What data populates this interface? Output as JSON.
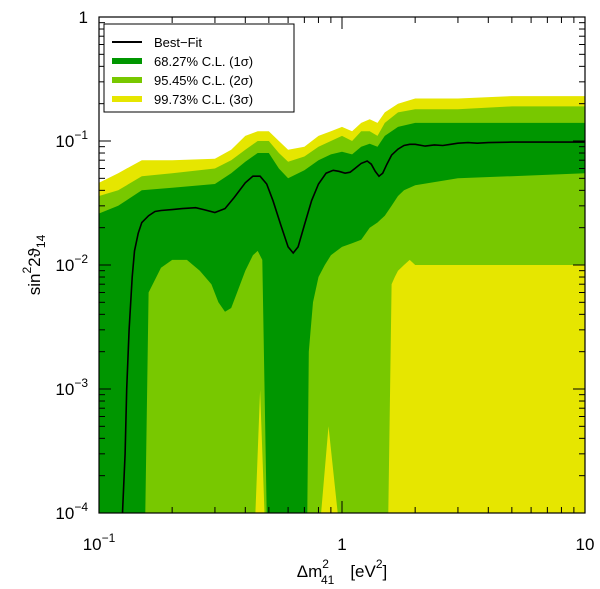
{
  "chart_data": {
    "type": "area",
    "title": "",
    "x_scale": "log",
    "y_scale": "log",
    "xlim": [
      0.1,
      10
    ],
    "ylim": [
      0.0001,
      1
    ],
    "xlabel": {
      "main": "Δm",
      "sup": "2",
      "sub": "41",
      "unit": "[eV",
      "unit_sup": "2",
      "unit_close": "]"
    },
    "ylabel": {
      "pre": "sin",
      "sup": "2",
      "mid": "2ϑ",
      "sub": "14"
    },
    "x_ticks": [
      {
        "value": 0.1,
        "label": "10",
        "sup": "−1"
      },
      {
        "value": 1,
        "label": "1",
        "sup": ""
      },
      {
        "value": 10,
        "label": "10",
        "sup": ""
      }
    ],
    "y_ticks": [
      {
        "value": 0.0001,
        "label": "10",
        "sup": "−4"
      },
      {
        "value": 0.001,
        "label": "10",
        "sup": "−3"
      },
      {
        "value": 0.01,
        "label": "10",
        "sup": "−2"
      },
      {
        "value": 0.1,
        "label": "10",
        "sup": "−1"
      },
      {
        "value": 1,
        "label": "1",
        "sup": ""
      }
    ],
    "legend": {
      "position": "top-left",
      "entries": [
        {
          "label": "Best−Fit",
          "color": "#000000",
          "kind": "line"
        },
        {
          "label": "68.27% C.L. (1σ)",
          "color": "#009600",
          "kind": "fill"
        },
        {
          "label": "95.45% C.L. (2σ)",
          "color": "#78c800",
          "kind": "fill"
        },
        {
          "label": "99.73% C.L. (3σ)",
          "color": "#e6e600",
          "kind": "fill"
        }
      ]
    },
    "series": [
      {
        "name": "99.73% C.L. (3σ)",
        "color": "#e6e600",
        "upper": [
          [
            0.1,
            0.046
          ],
          [
            0.12,
            0.055
          ],
          [
            0.15,
            0.07
          ],
          [
            0.2,
            0.07
          ],
          [
            0.3,
            0.072
          ],
          [
            0.35,
            0.085
          ],
          [
            0.4,
            0.11
          ],
          [
            0.45,
            0.12
          ],
          [
            0.5,
            0.12
          ],
          [
            0.55,
            0.1
          ],
          [
            0.6,
            0.085
          ],
          [
            0.7,
            0.09
          ],
          [
            0.8,
            0.11
          ],
          [
            0.9,
            0.12
          ],
          [
            1.0,
            0.13
          ],
          [
            1.1,
            0.12
          ],
          [
            1.2,
            0.14
          ],
          [
            1.3,
            0.15
          ],
          [
            1.4,
            0.14
          ],
          [
            1.5,
            0.17
          ],
          [
            1.7,
            0.2
          ],
          [
            2,
            0.22
          ],
          [
            3,
            0.22
          ],
          [
            5,
            0.23
          ],
          [
            10,
            0.23
          ]
        ],
        "lower": [
          [
            0.1,
            0.0001
          ],
          [
            10,
            0.0001
          ]
        ]
      },
      {
        "name": "95.45% C.L. (2σ)",
        "color": "#78c800",
        "upper": [
          [
            0.1,
            0.036
          ],
          [
            0.12,
            0.04
          ],
          [
            0.15,
            0.052
          ],
          [
            0.2,
            0.055
          ],
          [
            0.3,
            0.06
          ],
          [
            0.35,
            0.07
          ],
          [
            0.4,
            0.085
          ],
          [
            0.45,
            0.1
          ],
          [
            0.5,
            0.1
          ],
          [
            0.55,
            0.08
          ],
          [
            0.6,
            0.068
          ],
          [
            0.7,
            0.075
          ],
          [
            0.8,
            0.09
          ],
          [
            0.9,
            0.1
          ],
          [
            1.0,
            0.11
          ],
          [
            1.1,
            0.1
          ],
          [
            1.2,
            0.12
          ],
          [
            1.3,
            0.12
          ],
          [
            1.4,
            0.11
          ],
          [
            1.5,
            0.14
          ],
          [
            1.7,
            0.17
          ],
          [
            2,
            0.18
          ],
          [
            3,
            0.18
          ],
          [
            5,
            0.19
          ],
          [
            10,
            0.19
          ]
        ],
        "lower": [
          [
            0.1,
            0.0001
          ],
          [
            0.44,
            0.0001
          ],
          [
            0.46,
            0.00098
          ],
          [
            0.48,
            0.0001
          ],
          [
            0.82,
            0.0001
          ],
          [
            0.88,
            0.0005
          ],
          [
            0.96,
            0.0001
          ],
          [
            1.55,
            0.0001
          ],
          [
            1.6,
            0.007
          ],
          [
            1.65,
            0.008
          ],
          [
            1.7,
            0.009
          ],
          [
            1.8,
            0.01
          ],
          [
            1.9,
            0.011
          ],
          [
            2.0,
            0.01
          ],
          [
            10,
            0.01
          ]
        ]
      },
      {
        "name": "68.27% C.L. (1σ)",
        "color": "#009600",
        "upper": [
          [
            0.1,
            0.026
          ],
          [
            0.12,
            0.03
          ],
          [
            0.15,
            0.04
          ],
          [
            0.2,
            0.042
          ],
          [
            0.3,
            0.045
          ],
          [
            0.35,
            0.055
          ],
          [
            0.4,
            0.068
          ],
          [
            0.45,
            0.08
          ],
          [
            0.5,
            0.08
          ],
          [
            0.55,
            0.06
          ],
          [
            0.6,
            0.05
          ],
          [
            0.7,
            0.058
          ],
          [
            0.8,
            0.07
          ],
          [
            0.9,
            0.078
          ],
          [
            1.0,
            0.082
          ],
          [
            1.1,
            0.078
          ],
          [
            1.2,
            0.09
          ],
          [
            1.3,
            0.095
          ],
          [
            1.4,
            0.09
          ],
          [
            1.5,
            0.11
          ],
          [
            1.7,
            0.13
          ],
          [
            2,
            0.14
          ],
          [
            3,
            0.14
          ],
          [
            5,
            0.14
          ],
          [
            10,
            0.14
          ]
        ],
        "lower": [
          [
            0.1,
            0.0001
          ],
          [
            0.155,
            0.0001
          ],
          [
            0.16,
            0.006
          ],
          [
            0.18,
            0.0095
          ],
          [
            0.2,
            0.011
          ],
          [
            0.23,
            0.011
          ],
          [
            0.26,
            0.009
          ],
          [
            0.29,
            0.007
          ],
          [
            0.31,
            0.005
          ],
          [
            0.33,
            0.0042
          ],
          [
            0.35,
            0.0045
          ],
          [
            0.37,
            0.006
          ],
          [
            0.4,
            0.009
          ],
          [
            0.43,
            0.012
          ],
          [
            0.45,
            0.013
          ],
          [
            0.47,
            0.011
          ],
          [
            0.49,
            0.0001
          ],
          [
            0.72,
            0.0001
          ],
          [
            0.73,
            0.002
          ],
          [
            0.76,
            0.005
          ],
          [
            0.8,
            0.008
          ],
          [
            0.85,
            0.01
          ],
          [
            0.9,
            0.012
          ],
          [
            1.0,
            0.014
          ],
          [
            1.1,
            0.015
          ],
          [
            1.2,
            0.016
          ],
          [
            1.3,
            0.02
          ],
          [
            1.4,
            0.022
          ],
          [
            1.5,
            0.025
          ],
          [
            1.6,
            0.03
          ],
          [
            1.7,
            0.036
          ],
          [
            1.8,
            0.04
          ],
          [
            2,
            0.044
          ],
          [
            3,
            0.05
          ],
          [
            5,
            0.052
          ],
          [
            10,
            0.055
          ]
        ]
      }
    ],
    "best_fit": {
      "name": "Best−Fit",
      "color": "#000000",
      "points": [
        [
          0.125,
          0.0001
        ],
        [
          0.128,
          0.0003
        ],
        [
          0.13,
          0.001
        ],
        [
          0.133,
          0.003
        ],
        [
          0.137,
          0.008
        ],
        [
          0.14,
          0.013
        ],
        [
          0.145,
          0.018
        ],
        [
          0.15,
          0.022
        ],
        [
          0.16,
          0.025
        ],
        [
          0.17,
          0.027
        ],
        [
          0.18,
          0.0275
        ],
        [
          0.2,
          0.028
        ],
        [
          0.22,
          0.0285
        ],
        [
          0.25,
          0.029
        ],
        [
          0.27,
          0.028
        ],
        [
          0.3,
          0.0265
        ],
        [
          0.33,
          0.0285
        ],
        [
          0.36,
          0.035
        ],
        [
          0.4,
          0.046
        ],
        [
          0.43,
          0.052
        ],
        [
          0.46,
          0.052
        ],
        [
          0.49,
          0.045
        ],
        [
          0.52,
          0.033
        ],
        [
          0.56,
          0.021
        ],
        [
          0.6,
          0.014
        ],
        [
          0.63,
          0.0125
        ],
        [
          0.66,
          0.014
        ],
        [
          0.7,
          0.021
        ],
        [
          0.75,
          0.033
        ],
        [
          0.8,
          0.045
        ],
        [
          0.86,
          0.055
        ],
        [
          0.92,
          0.058
        ],
        [
          0.97,
          0.057
        ],
        [
          1.03,
          0.055
        ],
        [
          1.08,
          0.056
        ],
        [
          1.13,
          0.06
        ],
        [
          1.2,
          0.066
        ],
        [
          1.27,
          0.069
        ],
        [
          1.32,
          0.065
        ],
        [
          1.37,
          0.057
        ],
        [
          1.42,
          0.052
        ],
        [
          1.47,
          0.055
        ],
        [
          1.53,
          0.065
        ],
        [
          1.6,
          0.077
        ],
        [
          1.7,
          0.086
        ],
        [
          1.8,
          0.092
        ],
        [
          1.9,
          0.094
        ],
        [
          2.0,
          0.094
        ],
        [
          2.2,
          0.091
        ],
        [
          2.4,
          0.093
        ],
        [
          2.6,
          0.092
        ],
        [
          2.8,
          0.094
        ],
        [
          3.0,
          0.096
        ],
        [
          3.3,
          0.097
        ],
        [
          3.6,
          0.096
        ],
        [
          4,
          0.097
        ],
        [
          5,
          0.098
        ],
        [
          6,
          0.098
        ],
        [
          8,
          0.098
        ],
        [
          10,
          0.098
        ]
      ]
    }
  }
}
